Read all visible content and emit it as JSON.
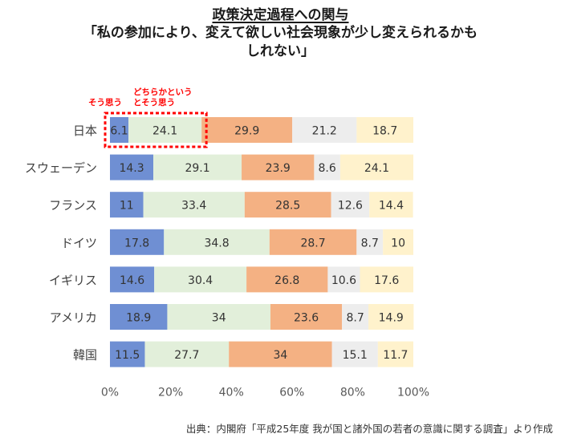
{
  "title": "政策決定過程への関与",
  "subtitle_line1": "「私の参加により、変えて欲しい社会現象が少し変えられるかも",
  "subtitle_line2": "しれない」",
  "source": "出典：内閣府「平成25年度 我が国と諸外国の若者の意識に関する調査」より作成",
  "colors": {
    "series": [
      "#6f8fd3",
      "#e2efda",
      "#f4b183",
      "#ededed",
      "#fff2cc"
    ],
    "callout": "#ff0000",
    "text": "#333333"
  },
  "annotations": {
    "series0_label": "そう思う",
    "series1_label_line1": "どちらかという",
    "series1_label_line2": "とそう思う"
  },
  "chart_data": {
    "type": "bar",
    "orientation": "horizontal",
    "stacked": true,
    "categories": [
      "日本",
      "スウェーデン",
      "フランス",
      "ドイツ",
      "イギリス",
      "アメリカ",
      "韓国"
    ],
    "series": [
      {
        "name": "そう思う",
        "values": [
          6.1,
          14.3,
          11,
          17.8,
          14.6,
          18.9,
          11.5
        ]
      },
      {
        "name": "どちらかというとそう思う",
        "values": [
          24.1,
          29.1,
          33.4,
          34.8,
          30.4,
          34,
          27.7
        ]
      },
      {
        "values": [
          29.9,
          23.9,
          28.5,
          28.7,
          26.8,
          23.6,
          34
        ]
      },
      {
        "values": [
          21.2,
          8.6,
          12.6,
          8.7,
          10.6,
          8.7,
          15.1
        ]
      },
      {
        "values": [
          18.7,
          24.1,
          14.4,
          10,
          17.6,
          14.9,
          11.7
        ]
      }
    ],
    "xlim": [
      0,
      100
    ],
    "xticks": [
      0,
      20,
      40,
      60,
      80,
      100
    ],
    "xtick_labels": [
      "0%",
      "20%",
      "40%",
      "60%",
      "80%",
      "100%"
    ],
    "grid": false,
    "legend": "none",
    "highlight": "日本 — そう思う + どちらかというとそう思う"
  }
}
